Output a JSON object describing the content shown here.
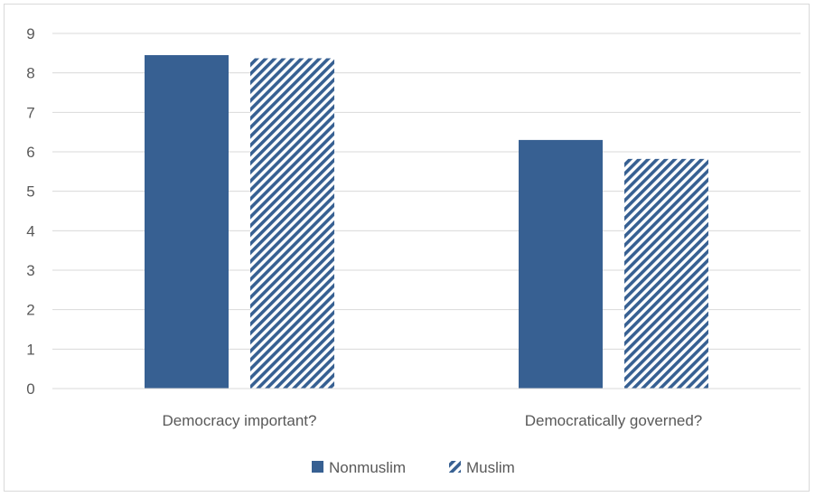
{
  "chart_data": {
    "type": "bar",
    "categories": [
      "Democracy important?",
      "Democratically governed?"
    ],
    "series": [
      {
        "name": "Nonmuslim",
        "values": [
          8.45,
          6.3
        ],
        "color": "#376092",
        "pattern": "solid"
      },
      {
        "name": "Muslim",
        "values": [
          8.37,
          5.82
        ],
        "color": "#376092",
        "pattern": "diagonal-hatch"
      }
    ],
    "yticks": [
      "0",
      "1",
      "2",
      "3",
      "4",
      "5",
      "6",
      "7",
      "8",
      "9"
    ],
    "ylim": [
      0,
      9
    ],
    "grid": true,
    "legend": "bottom"
  }
}
